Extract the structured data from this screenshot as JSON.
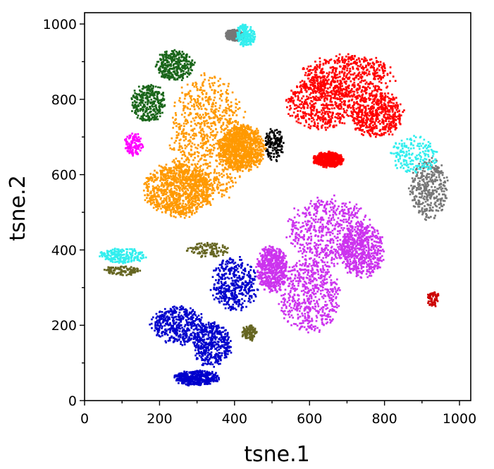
{
  "chart_data": {
    "type": "scatter",
    "title": "",
    "xlabel": "tsne.1",
    "ylabel": "tsne.2",
    "xlim": [
      0,
      1030
    ],
    "ylim": [
      0,
      1030
    ],
    "xticks": [
      0,
      200,
      400,
      600,
      800,
      1000
    ],
    "yticks": [
      0,
      200,
      400,
      600,
      800,
      1000
    ],
    "grid": false,
    "legend": "none",
    "marker_size_units": 5,
    "clusters": [
      {
        "color": "#ff9900",
        "points": 2800,
        "blobs": [
          [
            330,
            690,
            100,
            170
          ],
          [
            250,
            560,
            90,
            70
          ],
          [
            420,
            670,
            60,
            60
          ]
        ]
      },
      {
        "color": "#ff0000",
        "points": 2200,
        "blobs": [
          [
            700,
            860,
            120,
            60
          ],
          [
            630,
            790,
            90,
            70
          ],
          [
            780,
            760,
            70,
            60
          ],
          [
            650,
            640,
            40,
            20
          ]
        ]
      },
      {
        "color": "#cc33ee",
        "points": 2300,
        "blobs": [
          [
            650,
            450,
            110,
            90
          ],
          [
            600,
            280,
            80,
            100
          ],
          [
            740,
            400,
            60,
            70
          ],
          [
            500,
            350,
            40,
            60
          ]
        ]
      },
      {
        "color": "#0000cc",
        "points": 1700,
        "blobs": [
          [
            400,
            310,
            60,
            70
          ],
          [
            250,
            200,
            70,
            50
          ],
          [
            340,
            150,
            50,
            60
          ],
          [
            300,
            60,
            60,
            20
          ]
        ]
      },
      {
        "color": "#777777",
        "points": 700,
        "blobs": [
          [
            920,
            560,
            50,
            80
          ],
          [
            400,
            970,
            25,
            15
          ]
        ]
      },
      {
        "color": "#33eeee",
        "points": 600,
        "blobs": [
          [
            880,
            650,
            60,
            50
          ],
          [
            100,
            385,
            60,
            20
          ],
          [
            430,
            970,
            25,
            30
          ]
        ]
      },
      {
        "color": "#1a661a",
        "points": 650,
        "blobs": [
          [
            240,
            890,
            50,
            40
          ],
          [
            170,
            790,
            45,
            50
          ]
        ]
      },
      {
        "color": "#666622",
        "points": 350,
        "blobs": [
          [
            100,
            345,
            50,
            12
          ],
          [
            330,
            400,
            60,
            20
          ],
          [
            440,
            180,
            20,
            20
          ]
        ]
      },
      {
        "color": "#000000",
        "points": 140,
        "blobs": [
          [
            505,
            680,
            25,
            45
          ]
        ]
      },
      {
        "color": "#ff00ff",
        "points": 120,
        "blobs": [
          [
            130,
            680,
            25,
            30
          ]
        ]
      },
      {
        "color": "#cc0000",
        "points": 60,
        "blobs": [
          [
            930,
            270,
            15,
            20
          ]
        ]
      }
    ]
  }
}
